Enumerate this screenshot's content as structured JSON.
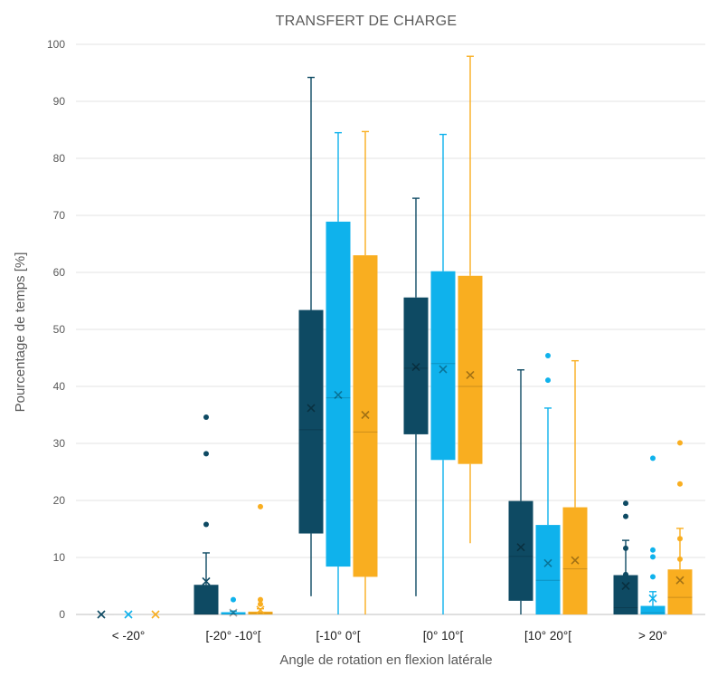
{
  "chart_data": {
    "type": "box",
    "title": "TRANSFERT DE CHARGE",
    "xlabel": "Angle de rotation en flexion latérale",
    "ylabel": "Pourcentage de temps [%]",
    "ylim": [
      0,
      100
    ],
    "yticks": [
      0,
      10,
      20,
      30,
      40,
      50,
      60,
      70,
      80,
      90,
      100
    ],
    "grid": true,
    "legend": "none",
    "categories": [
      "< -20°",
      "[-20° -10°[",
      "[-10° 0°[",
      "[0°  10°[",
      "[10° 20°[",
      "> 20°"
    ],
    "series_colors": [
      "#0e4a63",
      "#0fb2ec",
      "#f9ae20"
    ],
    "series": [
      {
        "boxes": [
          {
            "min": 0,
            "q1": 0,
            "median": 0,
            "q3": 0,
            "max": 0,
            "mean": 0,
            "outliers": []
          },
          {
            "min": 0,
            "q1": 0,
            "median": 0,
            "q3": 5.2,
            "max": 10.8,
            "mean": 5.8,
            "outliers": [
              15.8,
              28.2,
              34.6
            ]
          },
          {
            "min": 3.2,
            "q1": 14.2,
            "median": 32.4,
            "q3": 53.4,
            "max": 94.2,
            "mean": 36.2,
            "outliers": []
          },
          {
            "min": 3.2,
            "q1": 31.6,
            "median": 43.2,
            "q3": 55.6,
            "max": 73.0,
            "mean": 43.4,
            "outliers": []
          },
          {
            "min": 0,
            "q1": 2.4,
            "median": 10.2,
            "q3": 19.9,
            "max": 42.9,
            "mean": 11.8,
            "outliers": []
          },
          {
            "min": 0,
            "q1": 0,
            "median": 1.2,
            "q3": 6.9,
            "max": 13.0,
            "mean": 5.0,
            "outliers": [
              17.2,
              19.5,
              11.6,
              7.0
            ]
          }
        ]
      },
      {
        "boxes": [
          {
            "min": 0,
            "q1": 0,
            "median": 0,
            "q3": 0,
            "max": 0,
            "mean": 0,
            "outliers": []
          },
          {
            "min": 0,
            "q1": 0,
            "median": 0,
            "q3": 0.4,
            "max": 0.6,
            "mean": 0.3,
            "outliers": [
              2.6
            ]
          },
          {
            "min": 0,
            "q1": 8.4,
            "median": 38.0,
            "q3": 68.9,
            "max": 84.5,
            "mean": 38.5,
            "outliers": []
          },
          {
            "min": 0,
            "q1": 27.1,
            "median": 44.0,
            "q3": 60.2,
            "max": 84.2,
            "mean": 43.0,
            "outliers": []
          },
          {
            "min": 0,
            "q1": 0,
            "median": 6.0,
            "q3": 15.7,
            "max": 36.2,
            "mean": 9.0,
            "outliers": [
              41.1,
              45.4
            ]
          },
          {
            "min": 0,
            "q1": 0,
            "median": 0.3,
            "q3": 1.5,
            "max": 4.0,
            "mean": 2.8,
            "outliers": [
              27.4,
              11.3,
              10.1,
              6.6
            ]
          }
        ]
      },
      {
        "boxes": [
          {
            "min": 0,
            "q1": 0,
            "median": 0,
            "q3": 0,
            "max": 0,
            "mean": 0,
            "outliers": []
          },
          {
            "min": 0,
            "q1": 0,
            "median": 0.2,
            "q3": 0.5,
            "max": 1.0,
            "mean": 0.8,
            "outliers": [
              18.9,
              2.6,
              1.8
            ]
          },
          {
            "min": 0,
            "q1": 6.6,
            "median": 32.0,
            "q3": 63.0,
            "max": 84.7,
            "mean": 35.0,
            "outliers": []
          },
          {
            "min": 12.5,
            "q1": 26.4,
            "median": 40.0,
            "q3": 59.4,
            "max": 97.9,
            "mean": 42.0,
            "outliers": []
          },
          {
            "min": 0,
            "q1": 0,
            "median": 8.0,
            "q3": 18.8,
            "max": 44.5,
            "mean": 9.5,
            "outliers": []
          },
          {
            "min": 0,
            "q1": 0,
            "median": 3.0,
            "q3": 7.9,
            "max": 15.1,
            "mean": 6.0,
            "outliers": [
              30.1,
              22.9,
              13.3,
              9.7
            ]
          }
        ]
      }
    ]
  }
}
